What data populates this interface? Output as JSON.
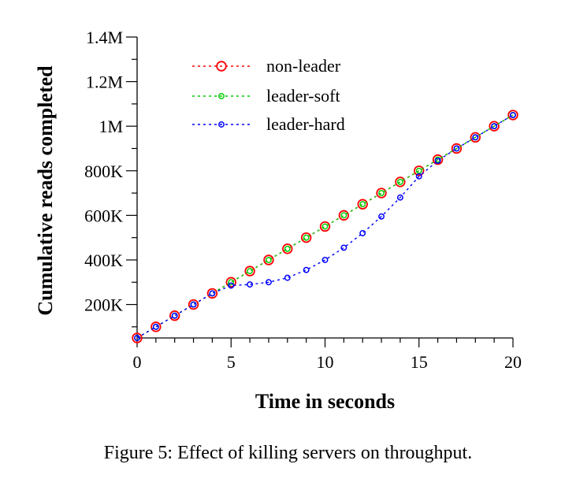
{
  "caption": "Figure 5: Effect of killing servers on throughput.",
  "chart_data": {
    "type": "line",
    "title": "",
    "xlabel": "Time in seconds",
    "ylabel": "Cumulative reads completed",
    "xlim": [
      0,
      20
    ],
    "ylim": [
      50000,
      1400000
    ],
    "x_ticks": [
      0,
      5,
      10,
      15,
      20
    ],
    "x_tick_labels": [
      "0",
      "5",
      "10",
      "15",
      "20"
    ],
    "y_ticks": [
      200000,
      400000,
      600000,
      800000,
      1000000,
      1200000,
      1400000
    ],
    "y_tick_labels": [
      "200K",
      "400K",
      "600K",
      "800K",
      "1M",
      "1.2M",
      "1.4M"
    ],
    "grid": false,
    "legend_position": "top-left",
    "x": [
      0,
      1,
      2,
      3,
      4,
      5,
      6,
      7,
      8,
      9,
      10,
      11,
      12,
      13,
      14,
      15,
      16,
      17,
      18,
      19,
      20
    ],
    "series": [
      {
        "name": "non-leader",
        "color": "#ff0000",
        "marker": "large-circle",
        "values": [
          50000,
          100000,
          150000,
          200000,
          250000,
          300000,
          350000,
          400000,
          450000,
          500000,
          550000,
          600000,
          650000,
          700000,
          750000,
          800000,
          850000,
          900000,
          950000,
          1000000,
          1050000
        ]
      },
      {
        "name": "leader-soft",
        "color": "#00cc00",
        "marker": "small-circle",
        "values": [
          50000,
          100000,
          150000,
          200000,
          250000,
          300000,
          350000,
          400000,
          450000,
          500000,
          550000,
          600000,
          650000,
          700000,
          750000,
          800000,
          850000,
          900000,
          950000,
          1000000,
          1050000
        ]
      },
      {
        "name": "leader-hard",
        "color": "#0000ff",
        "marker": "small-circle",
        "values": [
          50000,
          100000,
          150000,
          200000,
          250000,
          285000,
          290000,
          300000,
          320000,
          355000,
          400000,
          455000,
          520000,
          595000,
          680000,
          775000,
          845000,
          900000,
          950000,
          1000000,
          1050000
        ]
      }
    ]
  }
}
